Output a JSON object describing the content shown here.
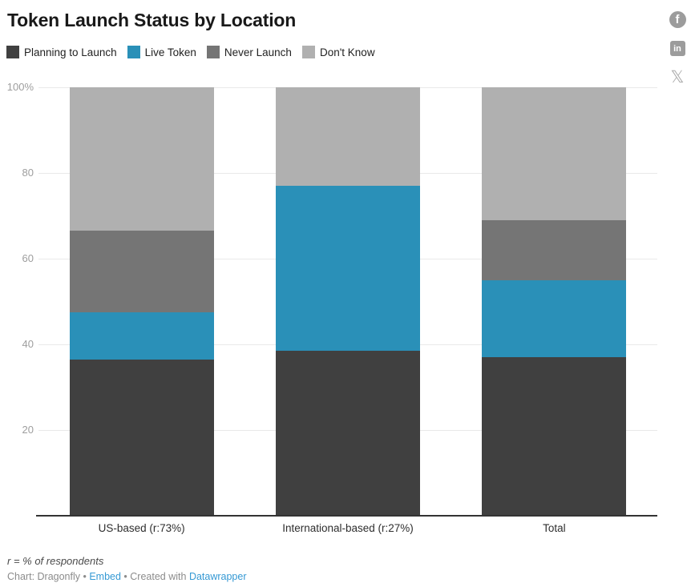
{
  "title": "Token Launch Status by Location",
  "legend": [
    {
      "label": "Planning to Launch",
      "color": "#404040"
    },
    {
      "label": "Live Token",
      "color": "#2a90b8"
    },
    {
      "label": "Never Launch",
      "color": "#757575"
    },
    {
      "label": "Don't Know",
      "color": "#b0b0b0"
    }
  ],
  "chart_data": {
    "type": "bar",
    "stacked": true,
    "title": "Token Launch Status by Location",
    "unit": "%",
    "categories": [
      "US-based (r:73%)",
      "International-based (r:27%)",
      "Total"
    ],
    "series": [
      {
        "name": "Planning to Launch",
        "color": "#404040",
        "values": [
          36.5,
          38.5,
          37
        ]
      },
      {
        "name": "Live Token",
        "color": "#2a90b8",
        "values": [
          11,
          38.5,
          18
        ]
      },
      {
        "name": "Never Launch",
        "color": "#757575",
        "values": [
          19,
          0,
          14
        ]
      },
      {
        "name": "Don't Know",
        "color": "#b0b0b0",
        "values": [
          33.5,
          23,
          31
        ]
      }
    ],
    "ylim": [
      0,
      100
    ],
    "yticks": [
      {
        "value": 100,
        "label": "100%"
      },
      {
        "value": 80,
        "label": "80"
      },
      {
        "value": 60,
        "label": "60"
      },
      {
        "value": 40,
        "label": "40"
      },
      {
        "value": 20,
        "label": "20"
      }
    ],
    "grid": true,
    "legend_position": "top"
  },
  "footer": {
    "note": "r = % of respondents",
    "credit_prefix": "Chart: Dragonfly",
    "dot1": " • ",
    "embed_label": "Embed",
    "dot2": " • ",
    "created_with": "Created with ",
    "tool_label": "Datawrapper"
  },
  "social": {
    "facebook_glyph": "f",
    "linkedin_glyph": "in",
    "x_glyph": "𝕏"
  },
  "colors": {
    "accent_blue": "#2a90b8",
    "axis": "#333333",
    "gridline": "#e9e9e9",
    "link": "#3599d4"
  }
}
